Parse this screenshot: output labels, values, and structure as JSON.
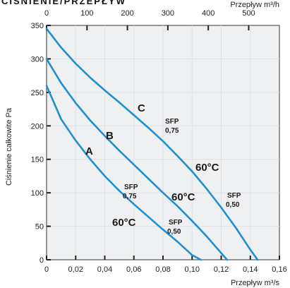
{
  "chart_data": {
    "type": "line",
    "title": "CIŚNIENIE/PRZEPŁYW",
    "xlabel": "Przepływ m³/s",
    "ylabel": "Ciśnienie całkowite Pa",
    "x2label": "Przepływ m³/h",
    "xlim": [
      0,
      0.16
    ],
    "ylim": [
      0,
      350
    ],
    "x2lim": [
      0,
      576
    ],
    "x_ticks": [
      "0",
      "0,02",
      "0,04",
      "0,06",
      "0,08",
      "0,10",
      "0,12",
      "0,14",
      "0,16"
    ],
    "y_ticks": [
      "0",
      "50",
      "100",
      "150",
      "200",
      "250",
      "300",
      "350"
    ],
    "x2_ticks": [
      "0",
      "100",
      "200",
      "300",
      "400",
      "500"
    ],
    "grid": true,
    "colors": {
      "curve": "#1f8fcf",
      "grid": "#dfe1e4",
      "background": "#eef0f2",
      "text": "#222222"
    },
    "series": [
      {
        "name": "A",
        "x": [
          0,
          0.01,
          0.02,
          0.03,
          0.04,
          0.05,
          0.06,
          0.07,
          0.08,
          0.09,
          0.1,
          0.106
        ],
        "y": [
          260,
          210,
          178,
          150,
          125,
          103,
          83,
          64,
          45,
          27,
          7,
          0
        ]
      },
      {
        "name": "B",
        "x": [
          0,
          0.01,
          0.02,
          0.03,
          0.04,
          0.05,
          0.06,
          0.07,
          0.08,
          0.09,
          0.1,
          0.11,
          0.12,
          0.124
        ],
        "y": [
          300,
          264,
          234,
          208,
          185,
          163,
          142,
          121,
          100,
          80,
          58,
          35,
          10,
          0
        ]
      },
      {
        "name": "C",
        "x": [
          0,
          0.01,
          0.02,
          0.03,
          0.04,
          0.05,
          0.06,
          0.07,
          0.08,
          0.09,
          0.1,
          0.11,
          0.12,
          0.13,
          0.14,
          0.145
        ],
        "y": [
          345,
          317,
          293,
          272,
          253,
          235,
          216,
          197,
          177,
          155,
          132,
          106,
          78,
          48,
          15,
          0
        ]
      }
    ],
    "annotations": {
      "curve_labels": [
        "A",
        "B",
        "C"
      ],
      "temp_labels": [
        "60°C",
        "60°C",
        "60°C"
      ],
      "sfp_labels": [
        {
          "top": "SFP",
          "bottom": "0,75"
        },
        {
          "top": "SFP",
          "bottom": "0,75"
        },
        {
          "top": "SFP",
          "bottom": "0,50"
        },
        {
          "top": "SFP",
          "bottom": "0,50"
        }
      ]
    }
  }
}
